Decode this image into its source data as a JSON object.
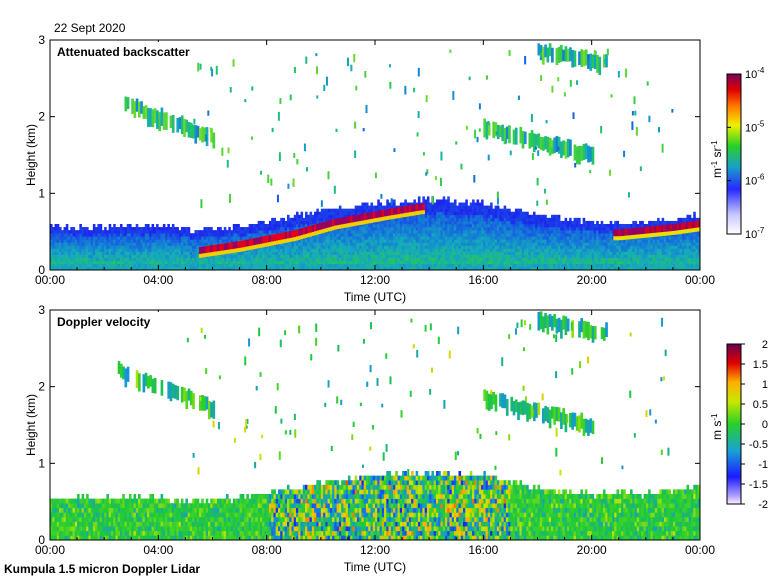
{
  "figure": {
    "date": "22 Sept 2020",
    "footer": "Kumpula 1.5 micron Doppler Lidar"
  },
  "chart_data": [
    {
      "type": "heatmap",
      "title": "Attenuated backscatter",
      "xlabel": "Time (UTC)",
      "ylabel": "Height (km)",
      "x_ticks": [
        "00:00",
        "04:00",
        "08:00",
        "12:00",
        "16:00",
        "20:00",
        "00:00"
      ],
      "x_tick_hours": [
        0,
        4,
        8,
        12,
        16,
        20,
        24
      ],
      "xlim": [
        0,
        24
      ],
      "y_ticks": [
        "0",
        "1",
        "2",
        "3"
      ],
      "y_tick_values": [
        0,
        1,
        2,
        3
      ],
      "ylim": [
        0,
        3
      ],
      "colorbar": {
        "scale": "log",
        "range": [
          1e-07,
          0.0001
        ],
        "ticks": [
          {
            "value": -4,
            "base": "10",
            "exp": "-4"
          },
          {
            "value": -5,
            "base": "10",
            "exp": "-5"
          },
          {
            "value": -6,
            "base": "10",
            "exp": "-6"
          },
          {
            "value": -7,
            "base": "10",
            "exp": "-7"
          }
        ],
        "unit_parts": {
          "a": "m",
          "b": "-1",
          "c": " sr",
          "d": "-1"
        }
      },
      "features": {
        "boundary_layer_top_km": [
          [
            0,
            0.55
          ],
          [
            2,
            0.55
          ],
          [
            4,
            0.55
          ],
          [
            5.5,
            0.5
          ],
          [
            7,
            0.55
          ],
          [
            8.5,
            0.65
          ],
          [
            10,
            0.75
          ],
          [
            12,
            0.85
          ],
          [
            14,
            0.9
          ],
          [
            16,
            0.85
          ],
          [
            18,
            0.7
          ],
          [
            20,
            0.6
          ],
          [
            22,
            0.6
          ],
          [
            24,
            0.7
          ]
        ],
        "aerosol_layer_km": [
          [
            5.5,
            0.25
          ],
          [
            7,
            0.33
          ],
          [
            9,
            0.47
          ],
          [
            10.5,
            0.62
          ],
          [
            12.5,
            0.75
          ],
          [
            13.7,
            0.82
          ],
          [
            21,
            0.48
          ],
          [
            23,
            0.55
          ],
          [
            24,
            0.6
          ]
        ],
        "cloud_layers": [
          {
            "t_start": 2.5,
            "t_end": 6.0,
            "z_top": 2.3,
            "z_bottom": 1.5
          },
          {
            "t_start": 18.0,
            "t_end": 20.5,
            "z_top": 2.95,
            "z_bottom": 2.7
          },
          {
            "t_start": 16.0,
            "t_end": 20.0,
            "z_top": 1.95,
            "z_bottom": 1.35
          }
        ]
      }
    },
    {
      "type": "heatmap",
      "title": "Doppler velocity",
      "xlabel": "Time (UTC)",
      "ylabel": "Height (km)",
      "x_ticks": [
        "00:00",
        "04:00",
        "08:00",
        "12:00",
        "16:00",
        "20:00",
        "00:00"
      ],
      "x_tick_hours": [
        0,
        4,
        8,
        12,
        16,
        20,
        24
      ],
      "xlim": [
        0,
        24
      ],
      "y_ticks": [
        "0",
        "1",
        "2",
        "3"
      ],
      "y_tick_values": [
        0,
        1,
        2,
        3
      ],
      "ylim": [
        0,
        3
      ],
      "colorbar": {
        "scale": "linear",
        "range": [
          -2,
          2
        ],
        "ticks": [
          "2",
          "1.5",
          "1",
          "0.5",
          "0",
          "-0.5",
          "-1",
          "-1.5",
          "-2"
        ],
        "tick_values": [
          2,
          1.5,
          1,
          0.5,
          0,
          -0.5,
          -1,
          -1.5,
          -2
        ],
        "unit_parts": {
          "a": "m s",
          "b": "-1"
        }
      }
    }
  ]
}
